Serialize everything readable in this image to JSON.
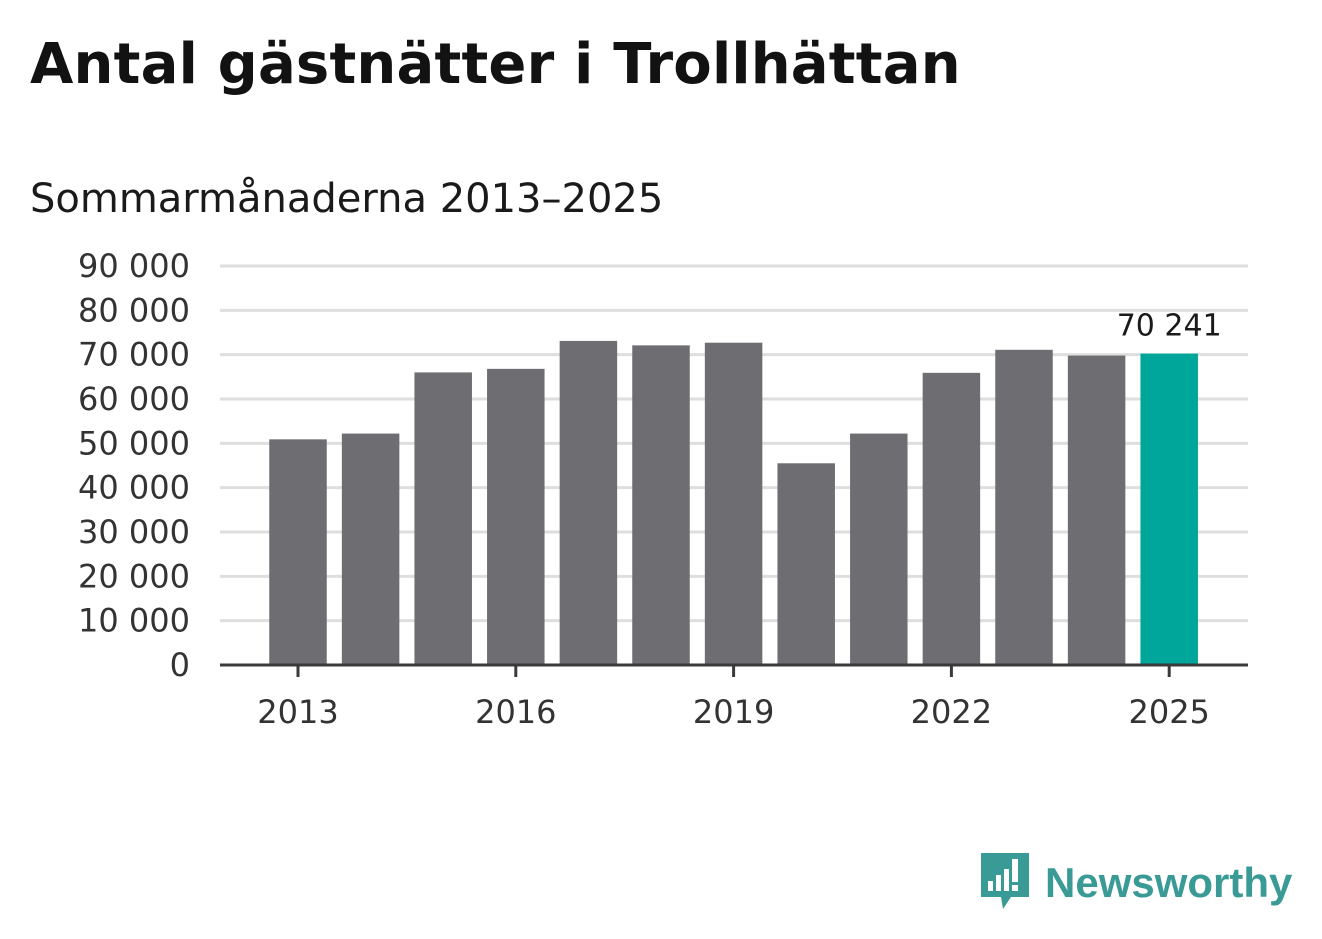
{
  "title": "Antal gästnätter i Trollhättan",
  "subtitle": "Sommarmånaderna 2013–2025",
  "brand": {
    "name": "Newsworthy",
    "color": "#3a9a96",
    "icon": "newsworthy-logo-icon"
  },
  "colors": {
    "bar": "#6e6d72",
    "highlight": "#00a699",
    "grid": "#dedede",
    "axis": "#3a3a3a"
  },
  "chart_data": {
    "type": "bar",
    "categories": [
      "2013",
      "2014",
      "2015",
      "2016",
      "2017",
      "2018",
      "2019",
      "2020",
      "2021",
      "2022",
      "2023",
      "2024",
      "2025"
    ],
    "values": [
      50900,
      52200,
      66000,
      66800,
      73100,
      72100,
      72700,
      45500,
      52200,
      65900,
      71100,
      69800,
      70241
    ],
    "highlight_index": 12,
    "data_labels": [
      {
        "index": 12,
        "text": "70 241"
      }
    ],
    "title": "Antal gästnätter i Trollhättan",
    "subtitle": "Sommarmånaderna 2013–2025",
    "xlabel": "",
    "ylabel": "",
    "ylim": [
      0,
      90000
    ],
    "yticks": [
      0,
      10000,
      20000,
      30000,
      40000,
      50000,
      60000,
      70000,
      80000,
      90000
    ],
    "ytick_labels": [
      "0",
      "10 000",
      "20 000",
      "30 000",
      "40 000",
      "50 000",
      "60 000",
      "70 000",
      "80 000",
      "90 000"
    ],
    "xtick_labels": [
      "2013",
      "2016",
      "2019",
      "2022",
      "2025"
    ],
    "grid": true,
    "legend": "none"
  }
}
